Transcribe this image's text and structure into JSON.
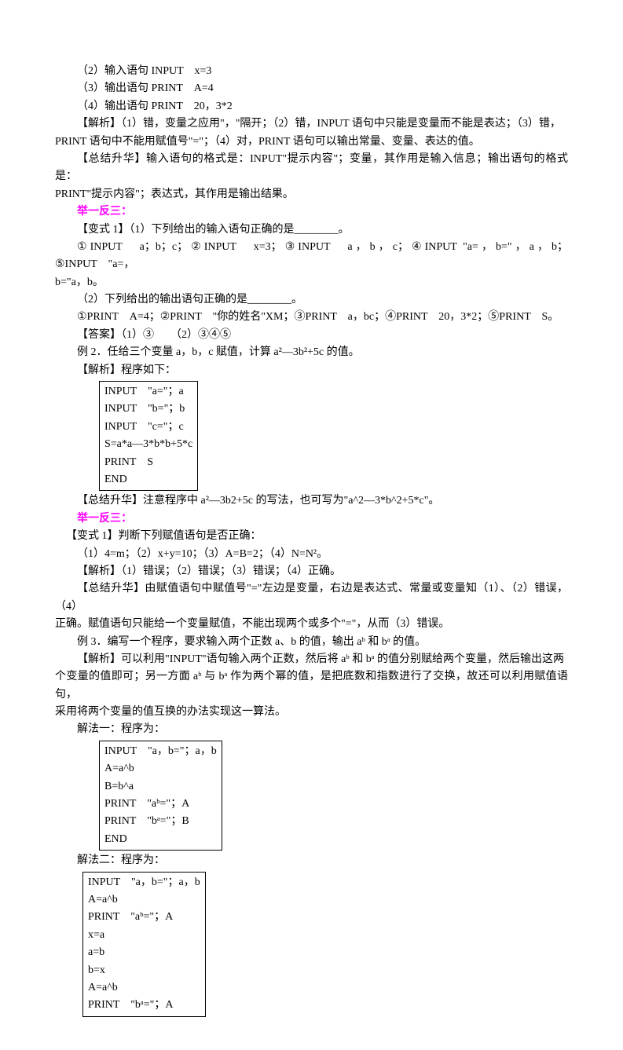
{
  "lines": {
    "l1": "（2）输入语句 INPUT　x=3",
    "l2": "（3）输出语句 PRINT　A=4",
    "l3": "（4）输出语句 PRINT　20，3*2",
    "l4a": "【解析】（1）错，变量之应用\"，\"隔开；（2）错，INPUT 语句中只能是变量而不能是表达；（3）错，",
    "l4b": "PRINT 语句中不能用赋值号\"=\"；（4）对，PRINT 语句可以输出常量、变量、表达的值。",
    "l5a": "【总结升华】输入语句的格式是：INPUT\"提示内容\"；变量，其作用是输入信息；输出语句的格式是：",
    "l5b": "PRINT\"提示内容\"；表达式，其作用是输出结果。",
    "header1": "举一反三：",
    "l6": "【变式 1】（1）下列给出的输入语句正确的是________。",
    "l7a": "①INPUT　a；b；c；②INPUT　x=3；③INPUT　a，b，c；④INPUT \"a=，b=\"，a，b；⑤INPUT　\"a=，",
    "l7b": "b=\"a，b。",
    "l8": "（2）下列给出的输出语句正确的是________。",
    "l9": "①PRINT　A=4；②PRINT　\"你的姓名\"XM；③PRINT　a，bc；④PRINT　20，3*2；⑤PRINT　S。",
    "l10": "【答案】（1）③　　（2）③④⑤",
    "l11": "例 2．任给三个变量 a，b，c 赋值，计算 a²―3b²+5c 的值。",
    "l12": "【解析】程序如下：",
    "box1": [
      "INPUT　\"a=\"；a",
      "INPUT　\"b=\"；b",
      "INPUT　\"c=\"；c",
      "S=a*a―3*b*b+5*c",
      "PRINT　S",
      "END"
    ],
    "l13": "【总结升华】注意程序中 a²―3b2+5c 的写法，也可写为\"a^2―3*b^2+5*c\"。",
    "header2": "举一反三：",
    "l14": "【变式 1】判断下列赋值语句是否正确：",
    "l15": "（1）4=m；（2）x+y=10；（3）A=B=2；（4）N=N²。",
    "l16": "【解析】（1）错误；（2）错误；（3）错误；（4）正确。",
    "l17a": "【总结升华】由赋值语句中赋值号\"=\"左边是变量，右边是表达式、常量或变量知（1）、（2）错误，（4）",
    "l17b": "正确。赋值语句只能给一个变量赋值，不能出现两个或多个\"=\"，从而（3）错误。",
    "l18": "例 3．编写一个程序，要求输入两个正数 a、b 的值，输出 aᵇ 和 bᵃ 的值。",
    "l19a": "【解析】可以利用\"INPUT\"语句输入两个正数，然后将 aᵇ 和 bᵃ 的值分别赋给两个变量，然后输出这两",
    "l19b": "个变量的值即可；另一方面 aᵇ 与 bᵃ 作为两个幂的值，是把底数和指数进行了交换，故还可以利用赋值语句，",
    "l19c": "采用将两个变量的值互换的办法实现这一算法。",
    "l20": "解法一：程序为：",
    "box2": [
      "INPUT　\"a，b=\"；a，b",
      "A=a^b",
      "B=b^a",
      "PRINT　\"aᵇ=\"；A",
      "PRINT　\"bᵃ=\"；B",
      "END"
    ],
    "l21": "解法二：程序为：",
    "box3": [
      "INPUT　\"a，b=\"；a，b",
      "A=a^b",
      "PRINT　\"aᵇ=\"；A",
      "x=a",
      "a=b",
      "b=x",
      "A=a^b",
      "PRINT　\"bᵃ=\"；A"
    ]
  },
  "colors": {
    "text": "#000000",
    "accent": "#ff00ff",
    "bg": "#ffffff"
  },
  "fontsize_pt": 10.5
}
